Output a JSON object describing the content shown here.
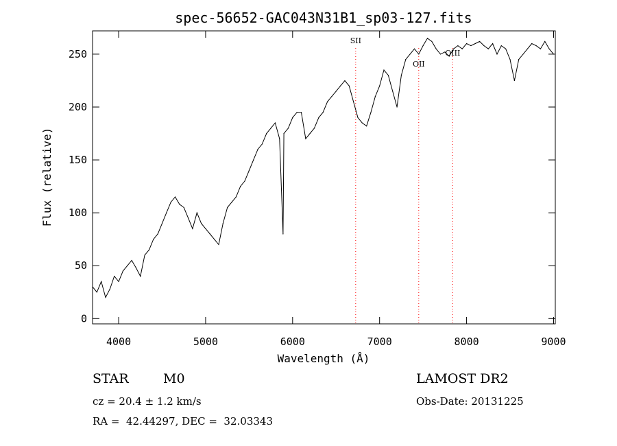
{
  "chart_data": {
    "type": "line",
    "title": "spec-56652-GAC043N31B1_sp03-127.fits",
    "xlabel": "Wavelength (Å)",
    "ylabel": "Flux (relative)",
    "xlim": [
      3700,
      9020
    ],
    "ylim": [
      -5,
      272
    ],
    "xticks": [
      4000,
      5000,
      6000,
      7000,
      8000,
      9000
    ],
    "yticks": [
      0,
      50,
      100,
      150,
      200,
      250
    ],
    "grid": false,
    "line_color": "#000000",
    "marker_color": "#ff0000",
    "lines": [
      {
        "label": "SII",
        "x": 6725
      },
      {
        "label": "OII",
        "x": 7450
      },
      {
        "label": "OIII",
        "x": 7840
      }
    ],
    "series": [
      {
        "x": [
          3700,
          3750,
          3800,
          3850,
          3900,
          3950,
          4000,
          4050,
          4100,
          4150,
          4200,
          4250,
          4300,
          4350,
          4400,
          4450,
          4500,
          4550,
          4600,
          4650,
          4700,
          4750,
          4800,
          4850,
          4900,
          4950,
          5000,
          5050,
          5100,
          5150,
          5200,
          5250,
          5300,
          5350,
          5400,
          5450,
          5500,
          5550,
          5600,
          5650,
          5700,
          5750,
          5800,
          5850,
          5890,
          5900,
          5950,
          6000,
          6050,
          6100,
          6150,
          6200,
          6250,
          6300,
          6350,
          6400,
          6450,
          6500,
          6550,
          6600,
          6650,
          6700,
          6750,
          6800,
          6850,
          6900,
          6950,
          7000,
          7050,
          7100,
          7150,
          7200,
          7250,
          7300,
          7350,
          7400,
          7450,
          7500,
          7550,
          7600,
          7650,
          7700,
          7750,
          7800,
          7850,
          7900,
          7950,
          8000,
          8050,
          8100,
          8150,
          8200,
          8250,
          8300,
          8350,
          8400,
          8450,
          8500,
          8550,
          8600,
          8650,
          8700,
          8750,
          8800,
          8850,
          8900,
          8950,
          9000
        ],
        "y": [
          30,
          25,
          35,
          20,
          28,
          40,
          35,
          45,
          50,
          55,
          48,
          40,
          60,
          65,
          75,
          80,
          90,
          100,
          110,
          115,
          108,
          105,
          95,
          85,
          100,
          90,
          85,
          80,
          75,
          70,
          90,
          105,
          110,
          115,
          125,
          130,
          140,
          150,
          160,
          165,
          175,
          180,
          185,
          170,
          80,
          175,
          180,
          190,
          195,
          195,
          170,
          175,
          180,
          190,
          195,
          205,
          210,
          215,
          220,
          225,
          220,
          205,
          190,
          185,
          182,
          195,
          210,
          220,
          235,
          230,
          215,
          200,
          230,
          245,
          250,
          255,
          250,
          258,
          265,
          262,
          255,
          250,
          252,
          248,
          255,
          258,
          255,
          260,
          258,
          260,
          262,
          258,
          255,
          260,
          250,
          258,
          255,
          245,
          225,
          245,
          250,
          255,
          260,
          258,
          255,
          262,
          255,
          250
        ]
      }
    ]
  },
  "footer": {
    "obj_class": "STAR",
    "subclass": "M0",
    "cz": "cz = 20.4 ± 1.2 km/s",
    "coords": "RA =  42.44297, DEC =  32.03343",
    "survey": "LAMOST DR2",
    "obs_date": "Obs-Date: 20131225"
  }
}
